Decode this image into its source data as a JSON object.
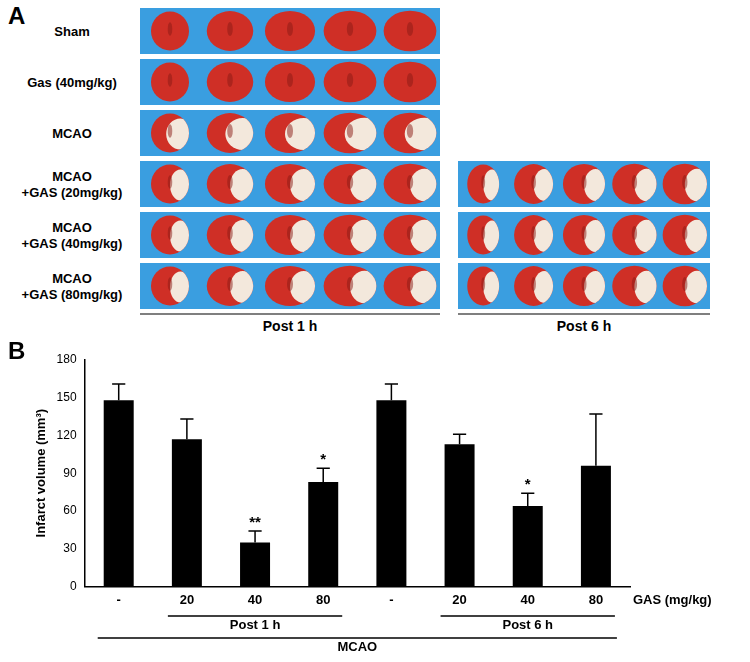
{
  "panel_a": {
    "label": "A",
    "rows": [
      [
        "Sham"
      ],
      [
        "Gas (40mg/kg)"
      ],
      [
        "MCAO"
      ],
      [
        "MCAO",
        "+GAS (20mg/kg)"
      ],
      [
        "MCAO",
        "+GAS (40mg/kg)"
      ],
      [
        "MCAO",
        "+GAS (80mg/kg)"
      ]
    ],
    "columns": [
      {
        "caption": "Post 1 h",
        "rows": [
          0,
          1,
          2,
          3,
          4,
          5
        ]
      },
      {
        "caption": "Post 6 h",
        "rows": [
          3,
          4,
          5
        ]
      }
    ]
  },
  "chart_data": {
    "panel": "B",
    "type": "bar",
    "y_label": "Infarct volume (mm³)",
    "categories": [
      "-",
      "20",
      "40",
      "80",
      "-",
      "20",
      "40",
      "80"
    ],
    "values": [
      148,
      117,
      35,
      83,
      148,
      113,
      64,
      96
    ],
    "errors": [
      13,
      16,
      9,
      11,
      13,
      8,
      10,
      41
    ],
    "significance": [
      null,
      null,
      "**",
      "*",
      null,
      null,
      "*",
      null
    ],
    "groups": [
      {
        "label": "Post 1 h",
        "from": 1,
        "to": 3
      },
      {
        "label": "Post 6 h",
        "from": 5,
        "to": 7
      }
    ],
    "x_label": "MCAO",
    "x_unit_label": "GAS (mg/kg)",
    "color": "#000000",
    "ylim": [
      0,
      180
    ],
    "yticks": [
      0,
      30,
      60,
      90,
      120,
      150,
      180
    ],
    "grid": false
  }
}
